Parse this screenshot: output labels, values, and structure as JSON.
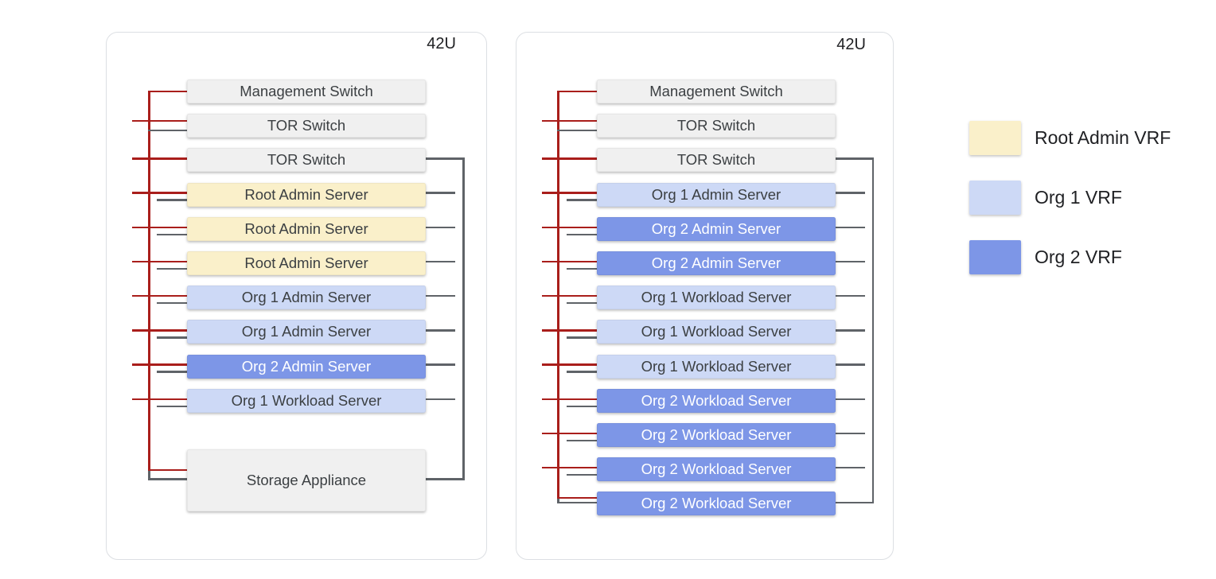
{
  "diagram": {
    "colors": {
      "mgmt_line": "#A91E1B",
      "data_line": "#5F6368",
      "infra_fill": "#F0F0F0",
      "root_admin_fill": "#FAF0CA",
      "org1_fill": "#CDD9F6",
      "org2_fill": "#7D96E7",
      "text": "#3C4043",
      "text_on_org2": "#FFFFFF",
      "rack_border": "#DCDFE3"
    },
    "racks": [
      {
        "capacity_label": "42U",
        "units": [
          {
            "label": "Management Switch",
            "type": "management-switch",
            "vrf": "infra"
          },
          {
            "label": "TOR Switch",
            "type": "tor-switch",
            "vrf": "infra"
          },
          {
            "label": "TOR Switch",
            "type": "tor-switch",
            "vrf": "infra"
          },
          {
            "label": "Root Admin Server",
            "type": "server",
            "vrf": "root-admin"
          },
          {
            "label": "Root Admin Server",
            "type": "server",
            "vrf": "root-admin"
          },
          {
            "label": "Root Admin Server",
            "type": "server",
            "vrf": "root-admin"
          },
          {
            "label": "Org 1 Admin Server",
            "type": "server",
            "vrf": "org-1"
          },
          {
            "label": "Org 1 Admin Server",
            "type": "server",
            "vrf": "org-1"
          },
          {
            "label": "Org 2 Admin Server",
            "type": "server",
            "vrf": "org-2"
          },
          {
            "label": "Org 1 Workload Server",
            "type": "server",
            "vrf": "org-1"
          },
          {
            "label": "Storage Appliance",
            "type": "storage-appliance",
            "vrf": "infra"
          }
        ]
      },
      {
        "capacity_label": "42U",
        "units": [
          {
            "label": "Management Switch",
            "type": "management-switch",
            "vrf": "infra"
          },
          {
            "label": "TOR Switch",
            "type": "tor-switch",
            "vrf": "infra"
          },
          {
            "label": "TOR Switch",
            "type": "tor-switch",
            "vrf": "infra"
          },
          {
            "label": "Org 1 Admin Server",
            "type": "server",
            "vrf": "org-1"
          },
          {
            "label": "Org 2 Admin Server",
            "type": "server",
            "vrf": "org-2"
          },
          {
            "label": "Org 2 Admin Server",
            "type": "server",
            "vrf": "org-2"
          },
          {
            "label": "Org 1 Workload Server",
            "type": "server",
            "vrf": "org-1"
          },
          {
            "label": "Org 1 Workload Server",
            "type": "server",
            "vrf": "org-1"
          },
          {
            "label": "Org 1 Workload Server",
            "type": "server",
            "vrf": "org-1"
          },
          {
            "label": "Org 2 Workload Server",
            "type": "server",
            "vrf": "org-2"
          },
          {
            "label": "Org 2 Workload Server",
            "type": "server",
            "vrf": "org-2"
          },
          {
            "label": "Org 2 Workload Server",
            "type": "server",
            "vrf": "org-2"
          },
          {
            "label": "Org 2 Workload Server",
            "type": "server",
            "vrf": "org-2"
          }
        ]
      }
    ],
    "legend": {
      "items": [
        {
          "label": "Root Admin VRF",
          "vrf": "root-admin"
        },
        {
          "label": "Org 1 VRF",
          "vrf": "org-1"
        },
        {
          "label": "Org 2 VRF",
          "vrf": "org-2"
        }
      ]
    }
  }
}
